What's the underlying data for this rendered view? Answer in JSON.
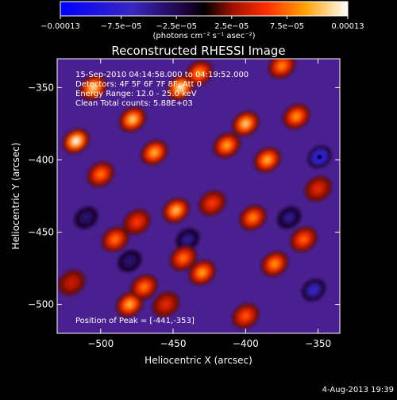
{
  "chart_data": {
    "type": "heatmap",
    "title": "Reconstructed RHESSI Image",
    "xlabel": "Heliocentric X (arcsec)",
    "ylabel": "Heliocentric Y (arcsec)",
    "xlim": [
      -530,
      -335
    ],
    "ylim": [
      -520,
      -330
    ],
    "x_ticks": [
      -500,
      -450,
      -400,
      -350
    ],
    "y_ticks": [
      -500,
      -450,
      -400,
      -350
    ],
    "colorbar": {
      "range": [
        -0.00013,
        0.00013
      ],
      "ticks": [
        {
          "value": -0.00013,
          "label": "−0.00013"
        },
        {
          "value": -7.5e-05,
          "label": "−7.5e−05"
        },
        {
          "value": -2.5e-05,
          "label": "−2.5e−05"
        },
        {
          "value": 2.5e-05,
          "label": "2.5e−05"
        },
        {
          "value": 7.5e-05,
          "label": "7.5e−05"
        },
        {
          "value": 0.00013,
          "label": "0.00013"
        }
      ],
      "units": "(photons cm⁻² s⁻¹ asec⁻²)"
    },
    "info_lines": [
      "15-Sep-2010 04:14:58.000 to 04:19:52.000",
      "Detectors: 4F 5F 6F 7F 8F, Att 0",
      "Energy Range: 12.0 - 25.0 keV",
      "Clean     Total counts: 5.88E+03"
    ],
    "peak_label": "Position of Peak = [-441,-353]",
    "peak_position": [
      -441,
      -353
    ],
    "min_marker": [
      -349,
      -398
    ],
    "blobs": [
      {
        "x": -517,
        "y": -387,
        "value": 0.00013
      },
      {
        "x": -505,
        "y": -350,
        "value": 0.000115
      },
      {
        "x": -478,
        "y": -372,
        "value": 0.00011
      },
      {
        "x": -500,
        "y": -410,
        "value": 8e-05
      },
      {
        "x": -463,
        "y": -395,
        "value": 0.0001
      },
      {
        "x": -445,
        "y": -350,
        "value": 0.000125
      },
      {
        "x": -432,
        "y": -340,
        "value": 9e-05
      },
      {
        "x": -448,
        "y": -435,
        "value": 0.000105
      },
      {
        "x": -490,
        "y": -455,
        "value": 8e-05
      },
      {
        "x": -475,
        "y": -443,
        "value": 6e-05
      },
      {
        "x": -423,
        "y": -430,
        "value": 6e-05
      },
      {
        "x": -413,
        "y": -390,
        "value": 9.5e-05
      },
      {
        "x": -400,
        "y": -375,
        "value": 0.00011
      },
      {
        "x": -385,
        "y": -400,
        "value": 0.0001
      },
      {
        "x": -365,
        "y": -370,
        "value": 9e-05
      },
      {
        "x": -375,
        "y": -335,
        "value": 8.5e-05
      },
      {
        "x": -395,
        "y": -440,
        "value": 8.5e-05
      },
      {
        "x": -360,
        "y": -455,
        "value": 7.5e-05
      },
      {
        "x": -430,
        "y": -478,
        "value": 9.5e-05
      },
      {
        "x": -443,
        "y": -468,
        "value": 8e-05
      },
      {
        "x": -480,
        "y": -500,
        "value": 0.0001
      },
      {
        "x": -470,
        "y": -488,
        "value": 8e-05
      },
      {
        "x": -380,
        "y": -472,
        "value": 9e-05
      },
      {
        "x": -400,
        "y": -508,
        "value": 7e-05
      },
      {
        "x": -350,
        "y": -420,
        "value": 5e-05
      },
      {
        "x": -520,
        "y": -485,
        "value": 4e-05
      },
      {
        "x": -455,
        "y": -500,
        "value": 5e-05
      }
    ],
    "negative_blobs": [
      {
        "x": -349,
        "y": -398,
        "value": -0.00012
      },
      {
        "x": -353,
        "y": -490,
        "value": -8e-05
      },
      {
        "x": -370,
        "y": -440,
        "value": -5e-05
      },
      {
        "x": -440,
        "y": -455,
        "value": -5e-05
      },
      {
        "x": -480,
        "y": -470,
        "value": -4e-05
      },
      {
        "x": -510,
        "y": -440,
        "value": -4e-05
      }
    ]
  },
  "footer": {
    "date": "4-Aug-2013 19:39"
  }
}
